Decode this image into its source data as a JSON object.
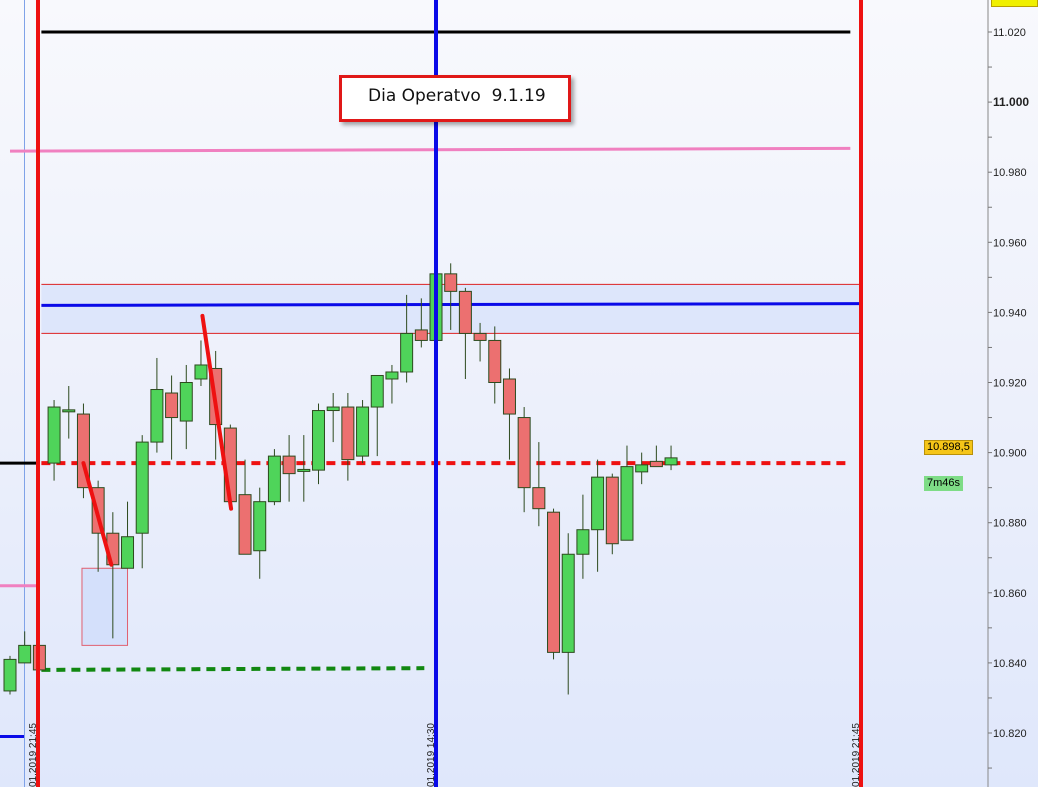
{
  "chart_data": {
    "type": "candlestick",
    "title": "Dia Operatvo  9.1.19",
    "ylim": [
      10.81,
      11.03
    ],
    "y_ticks": [
      "11.020",
      "11.000",
      "10.980",
      "10.960",
      "10.940",
      "10.920",
      "10.900",
      "10.880",
      "10.860",
      "10.840",
      "10.820"
    ],
    "y_tick_values": [
      11.02,
      11.0,
      10.98,
      10.96,
      10.94,
      10.92,
      10.9,
      10.88,
      10.86,
      10.84,
      10.82
    ],
    "bold_tick": "11.000",
    "grid": false,
    "colors": {
      "up": "#4fd45a",
      "down": "#ec7070",
      "wick": "#2d4a1e"
    },
    "candles": [
      {
        "o": 10.832,
        "h": 10.842,
        "l": 10.831,
        "c": 10.841
      },
      {
        "o": 10.84,
        "h": 10.849,
        "l": 10.84,
        "c": 10.845
      },
      {
        "o": 10.845,
        "h": 10.846,
        "l": 10.838,
        "c": 10.838
      },
      {
        "o": 10.897,
        "h": 10.915,
        "l": 10.892,
        "c": 10.913
      },
      {
        "o": 10.912,
        "h": 10.919,
        "l": 10.904,
        "c": 10.9122
      },
      {
        "o": 10.911,
        "h": 10.914,
        "l": 10.887,
        "c": 10.89
      },
      {
        "o": 10.89,
        "h": 10.892,
        "l": 10.866,
        "c": 10.877
      },
      {
        "o": 10.877,
        "h": 10.883,
        "l": 10.847,
        "c": 10.868
      },
      {
        "o": 10.867,
        "h": 10.886,
        "l": 10.867,
        "c": 10.876
      },
      {
        "o": 10.877,
        "h": 10.905,
        "l": 10.867,
        "c": 10.903
      },
      {
        "o": 10.903,
        "h": 10.927,
        "l": 10.9,
        "c": 10.918
      },
      {
        "o": 10.917,
        "h": 10.922,
        "l": 10.898,
        "c": 10.91
      },
      {
        "o": 10.909,
        "h": 10.925,
        "l": 10.901,
        "c": 10.92
      },
      {
        "o": 10.921,
        "h": 10.932,
        "l": 10.919,
        "c": 10.925
      },
      {
        "o": 10.924,
        "h": 10.929,
        "l": 10.898,
        "c": 10.908
      },
      {
        "o": 10.907,
        "h": 10.908,
        "l": 10.886,
        "c": 10.886
      },
      {
        "o": 10.888,
        "h": 10.898,
        "l": 10.871,
        "c": 10.871
      },
      {
        "o": 10.872,
        "h": 10.89,
        "l": 10.864,
        "c": 10.886
      },
      {
        "o": 10.886,
        "h": 10.901,
        "l": 10.885,
        "c": 10.899
      },
      {
        "o": 10.899,
        "h": 10.905,
        "l": 10.886,
        "c": 10.894
      },
      {
        "o": 10.8948,
        "h": 10.905,
        "l": 10.886,
        "c": 10.8952
      },
      {
        "o": 10.895,
        "h": 10.914,
        "l": 10.891,
        "c": 10.912
      },
      {
        "o": 10.912,
        "h": 10.917,
        "l": 10.903,
        "c": 10.913
      },
      {
        "o": 10.913,
        "h": 10.917,
        "l": 10.892,
        "c": 10.898
      },
      {
        "o": 10.899,
        "h": 10.915,
        "l": 10.897,
        "c": 10.913
      },
      {
        "o": 10.913,
        "h": 10.922,
        "l": 10.899,
        "c": 10.922
      },
      {
        "o": 10.921,
        "h": 10.925,
        "l": 10.914,
        "c": 10.923
      },
      {
        "o": 10.923,
        "h": 10.945,
        "l": 10.92,
        "c": 10.934
      },
      {
        "o": 10.935,
        "h": 10.944,
        "l": 10.93,
        "c": 10.932
      },
      {
        "o": 10.932,
        "h": 10.951,
        "l": 10.932,
        "c": 10.951
      },
      {
        "o": 10.951,
        "h": 10.954,
        "l": 10.935,
        "c": 10.946
      },
      {
        "o": 10.946,
        "h": 10.947,
        "l": 10.921,
        "c": 10.934
      },
      {
        "o": 10.934,
        "h": 10.937,
        "l": 10.926,
        "c": 10.932
      },
      {
        "o": 10.932,
        "h": 10.936,
        "l": 10.914,
        "c": 10.92
      },
      {
        "o": 10.921,
        "h": 10.924,
        "l": 10.898,
        "c": 10.911
      },
      {
        "o": 10.91,
        "h": 10.913,
        "l": 10.883,
        "c": 10.89
      },
      {
        "o": 10.89,
        "h": 10.903,
        "l": 10.879,
        "c": 10.884
      },
      {
        "o": 10.883,
        "h": 10.884,
        "l": 10.841,
        "c": 10.843
      },
      {
        "o": 10.843,
        "h": 10.877,
        "l": 10.831,
        "c": 10.871
      },
      {
        "o": 10.871,
        "h": 10.888,
        "l": 10.864,
        "c": 10.878
      },
      {
        "o": 10.878,
        "h": 10.898,
        "l": 10.866,
        "c": 10.893
      },
      {
        "o": 10.893,
        "h": 10.894,
        "l": 10.871,
        "c": 10.874
      },
      {
        "o": 10.875,
        "h": 10.902,
        "l": 10.875,
        "c": 10.896
      },
      {
        "o": 10.8945,
        "h": 10.9,
        "l": 10.891,
        "c": 10.8965
      },
      {
        "o": 10.8975,
        "h": 10.902,
        "l": 10.896,
        "c": 10.896
      },
      {
        "o": 10.8965,
        "h": 10.902,
        "l": 10.895,
        "c": 10.8985
      }
    ],
    "vertical_lines": [
      {
        "bar": 2,
        "color": "#ee1111",
        "label": "01.2019 21:45"
      },
      {
        "bar": 29,
        "color": "#0a0ae8",
        "label": "01.2019 14:30"
      },
      {
        "bar": 58,
        "color": "#ee1111",
        "label": "01.2019 21:45"
      }
    ],
    "horizontal_lines": [
      {
        "price_start": 11.02,
        "price_end": 11.02,
        "color": "#000000",
        "from_bar": 2,
        "to_bar": 57,
        "style": "solid"
      },
      {
        "price_start": 10.986,
        "price_end": 10.9868,
        "color": "#f080c0",
        "from_bar": 0,
        "to_bar": 57,
        "style": "solid"
      },
      {
        "price_start": 10.942,
        "price_end": 10.9425,
        "color": "#0a0ae8",
        "from_bar": 2,
        "to_bar": 61,
        "style": "solid"
      },
      {
        "price_start": 10.897,
        "price_end": 10.897,
        "color": "#ee1111",
        "from_bar": 2,
        "to_bar": 57,
        "style": "dashed"
      },
      {
        "price_start": 10.838,
        "price_end": 10.8385,
        "color": "#118811",
        "from_bar": 2,
        "to_bar": 28,
        "style": "dashed"
      }
    ],
    "zone": {
      "top": 10.948,
      "bottom": 10.934,
      "color": "#dd2222",
      "from_bar": 2,
      "to_bar": 58
    },
    "box": {
      "top": 10.867,
      "bottom": 10.845,
      "from_bar": 4.9,
      "to_bar": 8,
      "color": "#e06070"
    },
    "trend_lines": [
      {
        "from": {
          "bar": 5,
          "price": 10.897
        },
        "to": {
          "bar": 6.9,
          "price": 10.868
        },
        "color": "#ee1111"
      },
      {
        "from": {
          "bar": 13.1,
          "price": 10.939
        },
        "to": {
          "bar": 15.05,
          "price": 10.884
        },
        "color": "#ee1111"
      }
    ],
    "left_stubs": [
      {
        "price": 10.897,
        "color": "#000000"
      },
      {
        "price": 10.862,
        "color": "#f080c0"
      },
      {
        "price": 10.819,
        "color": "#0a0ae8"
      }
    ],
    "last_price": "10.898,5",
    "countdown": "7m46s"
  }
}
